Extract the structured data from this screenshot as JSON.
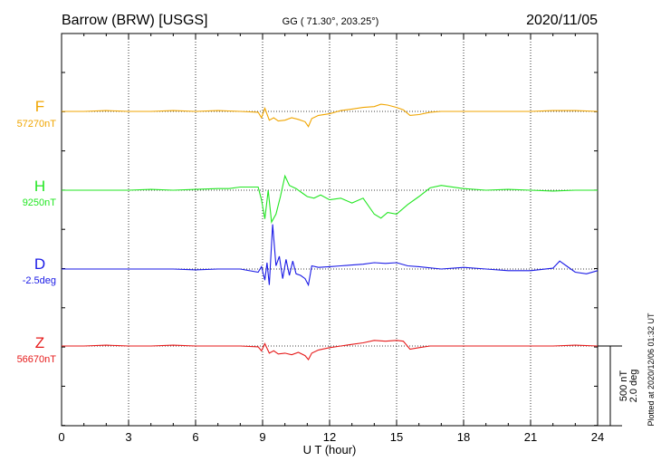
{
  "header": {
    "station": "Barrow (BRW)  [USGS]",
    "coords": "GG ( 71.30°, 203.25°)",
    "date": "2020/11/05"
  },
  "chart_data": {
    "type": "line",
    "xlabel": "U T (hour)",
    "xlim": [
      0,
      24
    ],
    "xticks": [
      0,
      3,
      6,
      9,
      12,
      15,
      18,
      21,
      24
    ],
    "scale_bar": {
      "line1": "500 nT",
      "line2": "2.0 deg"
    },
    "plotted_note": "Plotted at 2020/12/06 01:32 UT",
    "series": [
      {
        "name": "F",
        "baseline_label": "57270nT",
        "color": "#f0a500",
        "t": [
          0,
          1,
          2,
          3,
          4,
          5,
          6,
          7,
          8,
          8.8,
          8.95,
          9.1,
          9.3,
          9.5,
          9.7,
          10,
          10.3,
          10.6,
          10.9,
          11.05,
          11.2,
          11.5,
          12,
          12.5,
          13,
          13.5,
          14,
          14.3,
          14.6,
          15,
          15.3,
          15.6,
          16,
          16.5,
          17,
          18,
          19,
          20,
          21,
          22,
          23,
          24
        ],
        "v": [
          0,
          0,
          5,
          0,
          0,
          5,
          0,
          5,
          0,
          -5,
          -40,
          20,
          -55,
          -40,
          -60,
          -55,
          -40,
          -50,
          -65,
          -95,
          -45,
          -25,
          -15,
          5,
          15,
          25,
          30,
          45,
          40,
          25,
          10,
          -25,
          -20,
          -5,
          0,
          0,
          0,
          0,
          0,
          5,
          5,
          0
        ]
      },
      {
        "name": "H",
        "baseline_label": "9250nT",
        "color": "#22e622",
        "t": [
          0,
          1,
          2,
          3,
          4,
          5,
          6,
          7,
          7.5,
          8,
          8.5,
          8.8,
          8.95,
          9.1,
          9.25,
          9.4,
          9.6,
          9.8,
          10,
          10.2,
          10.5,
          10.8,
          11,
          11.3,
          11.6,
          12,
          12.5,
          13,
          13.5,
          14,
          14.3,
          14.6,
          15,
          15.5,
          16,
          16.5,
          17,
          18,
          19,
          20,
          21,
          22,
          23,
          24
        ],
        "v": [
          0,
          0,
          0,
          0,
          5,
          0,
          5,
          10,
          10,
          20,
          20,
          20,
          -60,
          -180,
          0,
          -200,
          -150,
          -40,
          90,
          30,
          10,
          -20,
          -40,
          -50,
          -30,
          -60,
          -50,
          -80,
          -50,
          -150,
          -175,
          -140,
          -150,
          -90,
          -40,
          15,
          30,
          10,
          0,
          5,
          0,
          -5,
          0,
          0
        ]
      },
      {
        "name": "D",
        "baseline_label": "-2.5deg",
        "color": "#1a1ae6",
        "t": [
          0,
          1,
          2,
          3,
          4,
          5,
          6,
          7,
          8,
          8.8,
          8.95,
          9.1,
          9.2,
          9.3,
          9.45,
          9.6,
          9.75,
          9.9,
          10.05,
          10.2,
          10.35,
          10.5,
          10.7,
          10.9,
          11.05,
          11.2,
          11.5,
          12,
          12.5,
          13,
          13.5,
          14,
          14.5,
          15,
          15.5,
          16,
          17,
          18,
          19,
          20,
          21,
          22,
          22.3,
          22.6,
          23,
          23.5,
          24
        ],
        "v": [
          0,
          0,
          0,
          0,
          0,
          0,
          -5,
          0,
          0,
          -20,
          15,
          -70,
          40,
          -100,
          280,
          20,
          80,
          -60,
          60,
          -40,
          50,
          -30,
          -40,
          -60,
          -100,
          20,
          10,
          15,
          20,
          25,
          30,
          40,
          35,
          40,
          20,
          15,
          0,
          10,
          0,
          -10,
          -10,
          5,
          50,
          20,
          -20,
          -30,
          -10
        ]
      },
      {
        "name": "Z",
        "baseline_label": "56670nT",
        "color": "#e61a1a",
        "t": [
          0,
          1,
          2,
          3,
          4,
          5,
          6,
          7,
          8,
          8.8,
          8.95,
          9.1,
          9.3,
          9.5,
          9.7,
          10,
          10.3,
          10.6,
          10.9,
          11.05,
          11.2,
          11.5,
          12,
          12.5,
          13,
          13.5,
          14,
          14.5,
          15,
          15.3,
          15.6,
          16,
          16.5,
          17,
          18,
          19,
          20,
          21,
          22,
          23,
          24
        ],
        "v": [
          0,
          0,
          5,
          0,
          0,
          5,
          0,
          0,
          0,
          -5,
          -30,
          15,
          -45,
          -30,
          -50,
          -45,
          -55,
          -40,
          -60,
          -85,
          -45,
          -25,
          -10,
          0,
          10,
          20,
          35,
          30,
          35,
          30,
          -20,
          -10,
          0,
          0,
          0,
          0,
          0,
          0,
          0,
          5,
          0
        ]
      }
    ]
  }
}
